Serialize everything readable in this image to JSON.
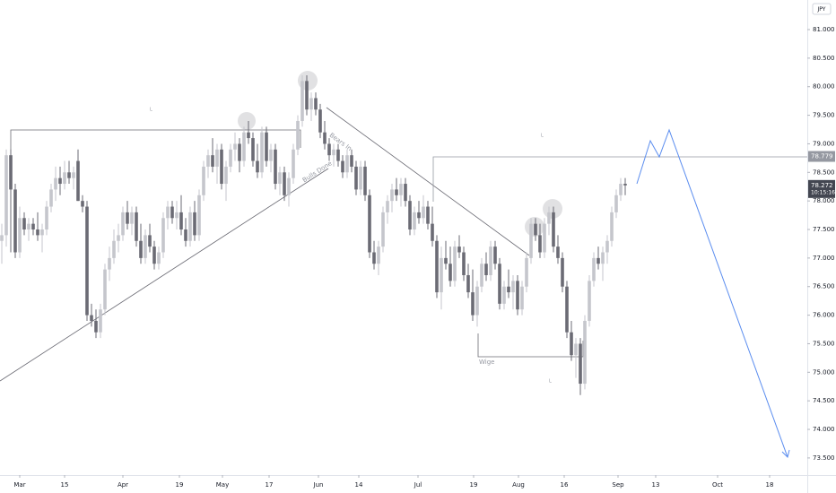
{
  "chart_data": {
    "type": "candlestick",
    "currency": "JPY",
    "colors": {
      "up": "#c5c6cc",
      "down": "#6b6b74"
    },
    "grid": false,
    "xlim": [
      -4.4,
      175.6
    ],
    "xticks": [
      {
        "value": 0,
        "label": "Mar"
      },
      {
        "value": 10,
        "label": "15"
      },
      {
        "value": 23,
        "label": "Apr"
      },
      {
        "value": 35.6,
        "label": "19"
      },
      {
        "value": 45.2,
        "label": "May"
      },
      {
        "value": 55.6,
        "label": "17"
      },
      {
        "value": 66.6,
        "label": "Jun"
      },
      {
        "value": 75.6,
        "label": "14"
      },
      {
        "value": 88.8,
        "label": "Jul"
      },
      {
        "value": 101.2,
        "label": "19"
      },
      {
        "value": 111.2,
        "label": "Aug"
      },
      {
        "value": 121.4,
        "label": "16"
      },
      {
        "value": 133.4,
        "label": "Sep"
      },
      {
        "value": 141.8,
        "label": "13"
      },
      {
        "value": 155.6,
        "label": "Oct"
      },
      {
        "value": 167.2,
        "label": "18"
      }
    ],
    "ylim": [
      73.2,
      81.518
    ],
    "yticks": [
      {
        "value": 73.5,
        "label": "73.500"
      },
      {
        "value": 74,
        "label": "74.000"
      },
      {
        "value": 74.5,
        "label": "74.500"
      },
      {
        "value": 75,
        "label": "75.000"
      },
      {
        "value": 75.5,
        "label": "75.500"
      },
      {
        "value": 76,
        "label": "76.000"
      },
      {
        "value": 76.5,
        "label": "76.500"
      },
      {
        "value": 77,
        "label": "77.000"
      },
      {
        "value": 77.5,
        "label": "77.500"
      },
      {
        "value": 78,
        "label": "78.000"
      },
      {
        "value": 78.5,
        "label": "78.500"
      },
      {
        "value": 79,
        "label": "79.000"
      },
      {
        "value": 79.5,
        "label": "79.500"
      },
      {
        "value": 80,
        "label": "80.000"
      },
      {
        "value": 80.5,
        "label": "80.500"
      },
      {
        "value": 81,
        "label": "81.000"
      }
    ],
    "price_labels": [
      {
        "value": 78.779,
        "color": "#9598a1"
      },
      {
        "value": 78.272,
        "time": "10:15:16",
        "color": "#434651"
      }
    ],
    "annotations": [
      {
        "text": "Bears In"
      },
      {
        "text": "Bulls Done"
      },
      {
        "text": "Wige"
      },
      {
        "text": "L"
      },
      {
        "text": "L"
      },
      {
        "text": "L"
      }
    ],
    "x": [
      -4,
      -3,
      -2,
      -1,
      0,
      1,
      2,
      3,
      4,
      5,
      6,
      7,
      8,
      9,
      10,
      11,
      12,
      13,
      14,
      15,
      16,
      17,
      18,
      19,
      20,
      21,
      22,
      23,
      24,
      25,
      26,
      27,
      28,
      29,
      30,
      31,
      32,
      33,
      34,
      35,
      36,
      37,
      38,
      39,
      40,
      41,
      42,
      43,
      44,
      45,
      46,
      47,
      48,
      49,
      50,
      51,
      52,
      53,
      54,
      55,
      56,
      57,
      58,
      59,
      60,
      61,
      62,
      63,
      64,
      65,
      66,
      67,
      68,
      69,
      70,
      71,
      72,
      73,
      74,
      75,
      76,
      77,
      78,
      79,
      80,
      81,
      82,
      83,
      84,
      85,
      86,
      87,
      88,
      89,
      90,
      91,
      92,
      93,
      94,
      95,
      96,
      97,
      98,
      99,
      100,
      101,
      102,
      103,
      104,
      105,
      106,
      107,
      108,
      109,
      110,
      111,
      112,
      113,
      114,
      115,
      116,
      117,
      118,
      119,
      120,
      121,
      122,
      123,
      124,
      125,
      126,
      127,
      128,
      129,
      130,
      131,
      132,
      133,
      134,
      135
    ],
    "candles": [
      [
        77.3,
        77.6,
        76.9,
        77.4
      ],
      [
        77.4,
        78.9,
        77.2,
        78.8
      ],
      [
        78.8,
        78.9,
        77.1,
        78.2
      ],
      [
        78.2,
        78.3,
        77.0,
        77.1
      ],
      [
        77.1,
        77.9,
        77.0,
        77.7
      ],
      [
        77.7,
        77.8,
        77.4,
        77.5
      ],
      [
        77.5,
        77.7,
        77.3,
        77.6
      ],
      [
        77.6,
        77.7,
        77.4,
        77.5
      ],
      [
        77.5,
        77.8,
        77.3,
        77.4
      ],
      [
        77.4,
        77.6,
        77.1,
        77.5
      ],
      [
        77.5,
        78.0,
        77.4,
        77.9
      ],
      [
        77.9,
        78.3,
        77.8,
        78.2
      ],
      [
        78.2,
        78.6,
        78.0,
        78.4
      ],
      [
        78.4,
        78.6,
        78.1,
        78.3
      ],
      [
        78.3,
        78.7,
        78.2,
        78.5
      ],
      [
        78.5,
        78.7,
        78.3,
        78.4
      ],
      [
        78.4,
        78.6,
        78.2,
        78.5
      ],
      [
        78.7,
        78.9,
        78.0,
        78.0
      ],
      [
        78.0,
        78.1,
        77.8,
        77.9
      ],
      [
        77.9,
        78.0,
        75.9,
        76.0
      ],
      [
        76.0,
        76.2,
        75.8,
        75.9
      ],
      [
        75.9,
        76.1,
        75.6,
        75.7
      ],
      [
        75.7,
        76.2,
        75.6,
        76.1
      ],
      [
        76.1,
        76.9,
        76.0,
        76.8
      ],
      [
        76.8,
        77.2,
        76.6,
        77.0
      ],
      [
        77.0,
        77.5,
        76.9,
        77.3
      ],
      [
        77.3,
        77.6,
        77.1,
        77.4
      ],
      [
        77.4,
        77.9,
        77.3,
        77.8
      ],
      [
        77.8,
        78.0,
        77.5,
        77.6
      ],
      [
        77.6,
        77.9,
        77.4,
        77.8
      ],
      [
        77.8,
        77.9,
        77.2,
        77.3
      ],
      [
        77.3,
        77.6,
        76.9,
        77.0
      ],
      [
        77.0,
        77.5,
        76.9,
        77.4
      ],
      [
        77.4,
        77.6,
        77.1,
        77.2
      ],
      [
        77.2,
        77.3,
        76.8,
        76.9
      ],
      [
        76.9,
        77.2,
        76.8,
        77.1
      ],
      [
        77.1,
        77.8,
        77.0,
        77.7
      ],
      [
        77.7,
        78.0,
        77.5,
        77.9
      ],
      [
        77.9,
        78.0,
        77.6,
        77.7
      ],
      [
        77.7,
        78.0,
        77.5,
        77.8
      ],
      [
        77.8,
        78.1,
        77.4,
        77.5
      ],
      [
        77.5,
        77.7,
        77.2,
        77.3
      ],
      [
        77.3,
        77.9,
        77.2,
        77.8
      ],
      [
        77.8,
        78.0,
        77.3,
        77.4
      ],
      [
        77.4,
        78.2,
        77.3,
        78.1
      ],
      [
        78.1,
        78.7,
        78.0,
        78.6
      ],
      [
        78.6,
        78.9,
        78.4,
        78.8
      ],
      [
        78.8,
        79.1,
        78.5,
        78.6
      ],
      [
        78.6,
        79.0,
        78.3,
        78.9
      ],
      [
        78.9,
        79.0,
        78.2,
        78.3
      ],
      [
        78.3,
        78.7,
        78.0,
        78.6
      ],
      [
        78.6,
        79.0,
        78.5,
        78.9
      ],
      [
        78.9,
        79.2,
        78.7,
        79.0
      ],
      [
        79.0,
        79.1,
        78.5,
        78.7
      ],
      [
        78.7,
        79.3,
        78.6,
        79.2
      ],
      [
        79.2,
        79.4,
        79.0,
        79.1
      ],
      [
        79.1,
        79.2,
        78.6,
        78.7
      ],
      [
        78.7,
        79.0,
        78.4,
        78.5
      ],
      [
        78.5,
        79.3,
        78.4,
        79.2
      ],
      [
        79.2,
        79.3,
        78.6,
        78.7
      ],
      [
        78.7,
        79.0,
        78.5,
        78.9
      ],
      [
        78.9,
        79.0,
        78.2,
        78.3
      ],
      [
        78.3,
        78.6,
        78.1,
        78.5
      ],
      [
        78.5,
        78.6,
        78.0,
        78.1
      ],
      [
        78.1,
        78.5,
        77.9,
        78.4
      ],
      [
        78.4,
        79.0,
        78.3,
        78.9
      ],
      [
        78.9,
        79.5,
        78.8,
        79.4
      ],
      [
        79.4,
        80.2,
        79.3,
        80.1
      ],
      [
        80.1,
        80.2,
        79.5,
        79.6
      ],
      [
        79.6,
        79.9,
        79.4,
        79.8
      ],
      [
        79.8,
        79.9,
        79.5,
        79.6
      ],
      [
        79.6,
        79.7,
        79.1,
        79.2
      ],
      [
        79.2,
        79.4,
        78.9,
        79.0
      ],
      [
        79.0,
        79.1,
        78.7,
        78.8
      ],
      [
        78.8,
        79.0,
        78.6,
        78.9
      ],
      [
        78.9,
        79.0,
        78.6,
        78.7
      ],
      [
        78.7,
        78.8,
        78.4,
        78.5
      ],
      [
        78.5,
        78.9,
        78.4,
        78.8
      ],
      [
        78.8,
        78.9,
        78.5,
        78.6
      ],
      [
        78.6,
        78.7,
        78.1,
        78.2
      ],
      [
        78.2,
        78.7,
        78.1,
        78.6
      ],
      [
        78.6,
        78.7,
        78.0,
        78.1
      ],
      [
        78.1,
        78.2,
        77.0,
        77.1
      ],
      [
        77.1,
        77.3,
        76.8,
        76.9
      ],
      [
        76.9,
        77.3,
        76.7,
        77.2
      ],
      [
        77.2,
        77.9,
        77.1,
        77.8
      ],
      [
        77.8,
        78.1,
        77.6,
        78.0
      ],
      [
        78.0,
        78.3,
        77.8,
        78.2
      ],
      [
        78.2,
        78.4,
        78.0,
        78.1
      ],
      [
        78.1,
        78.4,
        77.9,
        78.3
      ],
      [
        78.3,
        78.4,
        77.9,
        78.0
      ],
      [
        78.0,
        78.1,
        77.4,
        77.5
      ],
      [
        77.5,
        77.9,
        77.4,
        77.8
      ],
      [
        77.8,
        78.0,
        77.6,
        77.7
      ],
      [
        77.7,
        78.1,
        77.6,
        77.9
      ],
      [
        77.9,
        78.0,
        77.5,
        77.6
      ],
      [
        77.6,
        77.9,
        77.2,
        77.3
      ],
      [
        77.3,
        77.4,
        76.3,
        76.4
      ],
      [
        76.4,
        77.2,
        76.1,
        77.0
      ],
      [
        77.0,
        77.3,
        76.8,
        76.9
      ],
      [
        76.9,
        77.2,
        76.5,
        76.6
      ],
      [
        76.6,
        77.3,
        76.5,
        77.2
      ],
      [
        77.2,
        77.4,
        77.0,
        77.1
      ],
      [
        77.1,
        77.2,
        76.6,
        76.7
      ],
      [
        76.7,
        76.9,
        76.3,
        76.4
      ],
      [
        76.4,
        76.8,
        75.9,
        76.0
      ],
      [
        76.0,
        76.6,
        75.8,
        76.5
      ],
      [
        76.5,
        77.0,
        76.4,
        76.9
      ],
      [
        76.9,
        77.1,
        76.6,
        76.7
      ],
      [
        76.7,
        77.3,
        76.6,
        77.2
      ],
      [
        77.2,
        77.3,
        76.8,
        76.9
      ],
      [
        76.9,
        77.0,
        76.1,
        76.2
      ],
      [
        76.2,
        76.6,
        76.1,
        76.5
      ],
      [
        76.5,
        76.8,
        76.3,
        76.4
      ],
      [
        76.4,
        76.7,
        76.1,
        76.6
      ],
      [
        76.6,
        76.7,
        76.0,
        76.1
      ],
      [
        76.1,
        76.6,
        76.0,
        76.5
      ],
      [
        76.5,
        77.1,
        76.4,
        77.0
      ],
      [
        77.0,
        77.7,
        76.9,
        77.6
      ],
      [
        77.6,
        77.7,
        77.3,
        77.4
      ],
      [
        77.4,
        77.6,
        77.0,
        77.1
      ],
      [
        77.1,
        77.7,
        77.0,
        77.6
      ],
      [
        77.6,
        77.9,
        77.4,
        77.8
      ],
      [
        77.8,
        77.9,
        77.1,
        77.2
      ],
      [
        77.2,
        77.4,
        76.9,
        77.0
      ],
      [
        77.0,
        77.1,
        76.4,
        76.5
      ],
      [
        76.5,
        76.6,
        75.6,
        75.7
      ],
      [
        75.7,
        75.9,
        75.2,
        75.3
      ],
      [
        75.3,
        75.6,
        74.9,
        75.5
      ],
      [
        75.5,
        75.6,
        74.6,
        74.8
      ],
      [
        74.8,
        76.0,
        74.7,
        75.9
      ],
      [
        75.9,
        76.7,
        75.8,
        76.6
      ],
      [
        76.6,
        77.1,
        76.5,
        77.0
      ],
      [
        77.0,
        77.2,
        76.8,
        76.9
      ],
      [
        76.9,
        77.2,
        76.6,
        77.1
      ],
      [
        77.1,
        77.4,
        76.9,
        77.3
      ],
      [
        77.3,
        77.9,
        77.2,
        77.8
      ],
      [
        77.8,
        78.2,
        77.7,
        78.1
      ],
      [
        78.1,
        78.4,
        78.0,
        78.3
      ],
      [
        78.3,
        78.4,
        78.1,
        78.272
      ]
    ]
  }
}
